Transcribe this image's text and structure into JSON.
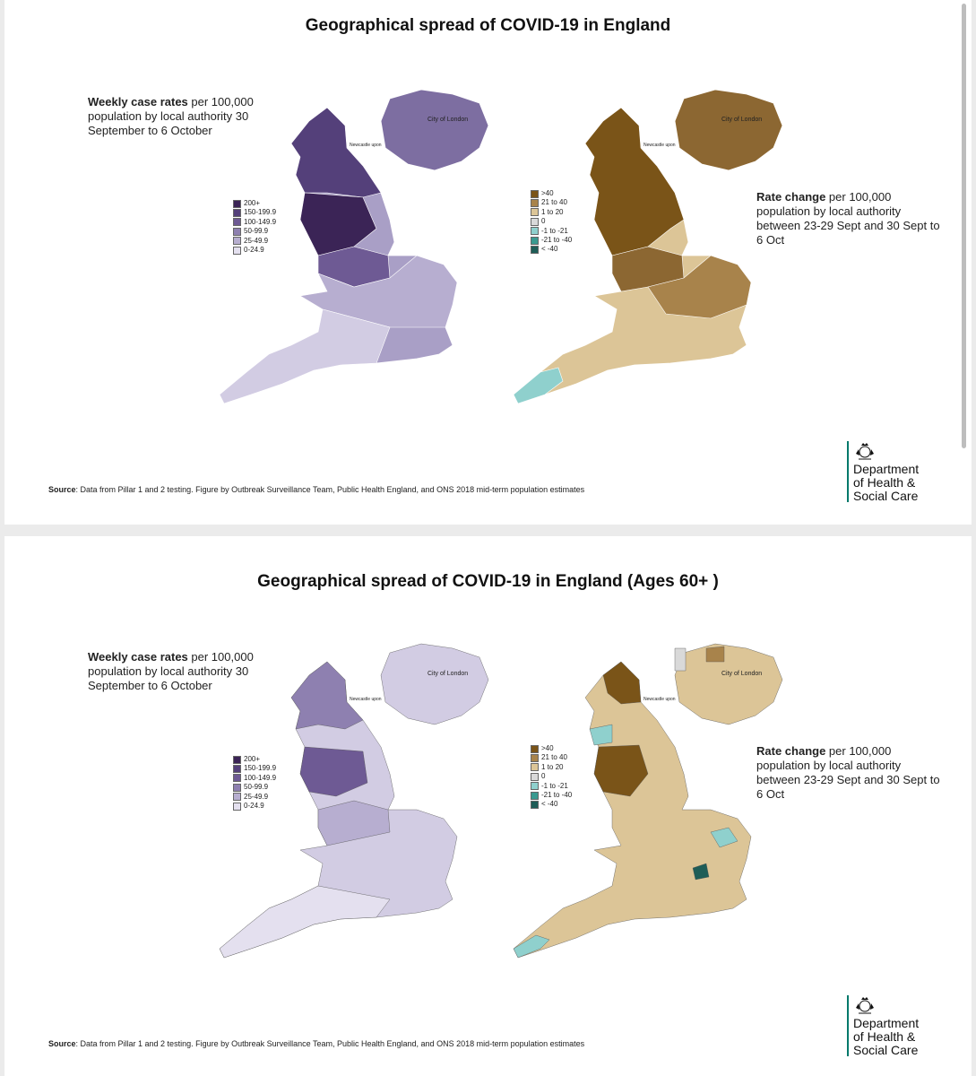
{
  "legend_left": {
    "items": [
      {
        "label": "200+",
        "color": "#3b2456"
      },
      {
        "label": "150-199.9",
        "color": "#54407a"
      },
      {
        "label": "100-149.9",
        "color": "#6e5a94"
      },
      {
        "label": "50-99.9",
        "color": "#8e80b0"
      },
      {
        "label": "25-49.9",
        "color": "#b7aed0"
      },
      {
        "label": "0-24.9",
        "color": "#e4e0ef"
      }
    ]
  },
  "legend_right": {
    "items": [
      {
        "label": ">40",
        "color": "#7a5418"
      },
      {
        "label": "21 to 40",
        "color": "#a8834b"
      },
      {
        "label": "1 to 20",
        "color": "#dcc597"
      },
      {
        "label": "0",
        "color": "#d9d9d9"
      },
      {
        "label": "-1 to -21",
        "color": "#8fd0cd"
      },
      {
        "label": "-21 to -40",
        "color": "#3a9a90"
      },
      {
        "label": "< -40",
        "color": "#1e5d57"
      }
    ]
  },
  "desc_left": {
    "bold": "Weekly case rates",
    "rest": " per 100,000 population by local authority 30 September to 6 October"
  },
  "desc_right": {
    "bold": "Rate change",
    "rest": " per 100,000 population by local authority between 23-29 Sept and 30 Sept to 6 Oct"
  },
  "source": {
    "bold": "Source",
    "rest": ": Data from Pillar 1 and 2 testing. Figure by Outbreak Surveillance Team, Public Health England, and ONS 2018 mid-term population estimates"
  },
  "dept": {
    "text": "Department\nof Health &\nSocial Care"
  },
  "map_labels": {
    "london": "City of London",
    "newcastle": "Newcastle upon"
  },
  "slides": [
    {
      "title": "Geographical spread of COVID-19 in England"
    },
    {
      "title": "Geographical spread of COVID-19 in England (Ages 60+ )"
    }
  ]
}
